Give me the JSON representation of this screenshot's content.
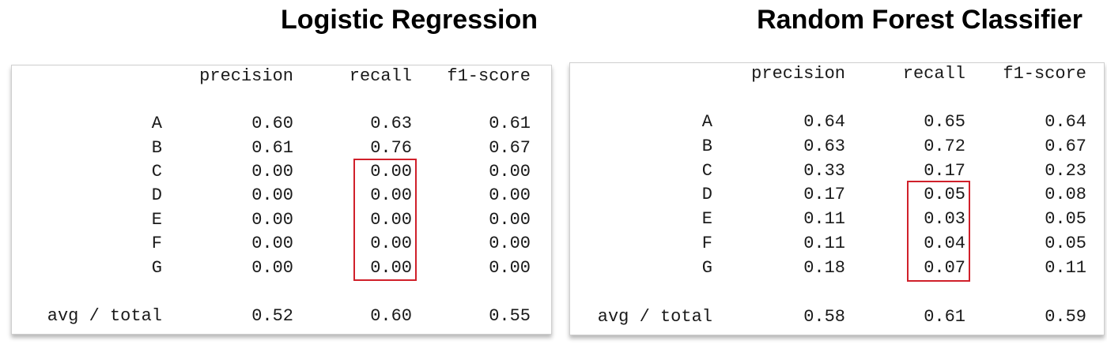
{
  "panels": [
    {
      "title": "Logistic Regression",
      "headers": [
        "precision",
        "recall",
        "f1-score"
      ],
      "rows": [
        {
          "label": "A",
          "values": [
            "0.60",
            "0.63",
            "0.61"
          ]
        },
        {
          "label": "B",
          "values": [
            "0.61",
            "0.76",
            "0.67"
          ]
        },
        {
          "label": "C",
          "values": [
            "0.00",
            "0.00",
            "0.00"
          ]
        },
        {
          "label": "D",
          "values": [
            "0.00",
            "0.00",
            "0.00"
          ]
        },
        {
          "label": "E",
          "values": [
            "0.00",
            "0.00",
            "0.00"
          ]
        },
        {
          "label": "F",
          "values": [
            "0.00",
            "0.00",
            "0.00"
          ]
        },
        {
          "label": "G",
          "values": [
            "0.00",
            "0.00",
            "0.00"
          ]
        }
      ],
      "total": {
        "label": "avg / total",
        "values": [
          "0.52",
          "0.60",
          "0.55"
        ]
      },
      "highlight_color": "#d0202a"
    },
    {
      "title": "Random Forest Classifier",
      "headers": [
        "precision",
        "recall",
        "f1-score"
      ],
      "rows": [
        {
          "label": "A",
          "values": [
            "0.64",
            "0.65",
            "0.64"
          ]
        },
        {
          "label": "B",
          "values": [
            "0.63",
            "0.72",
            "0.67"
          ]
        },
        {
          "label": "C",
          "values": [
            "0.33",
            "0.17",
            "0.23"
          ]
        },
        {
          "label": "D",
          "values": [
            "0.17",
            "0.05",
            "0.08"
          ]
        },
        {
          "label": "E",
          "values": [
            "0.11",
            "0.03",
            "0.05"
          ]
        },
        {
          "label": "F",
          "values": [
            "0.11",
            "0.04",
            "0.05"
          ]
        },
        {
          "label": "G",
          "values": [
            "0.18",
            "0.07",
            "0.11"
          ]
        }
      ],
      "total": {
        "label": "avg / total",
        "values": [
          "0.58",
          "0.61",
          "0.59"
        ]
      },
      "highlight_color": "#d0202a"
    }
  ]
}
